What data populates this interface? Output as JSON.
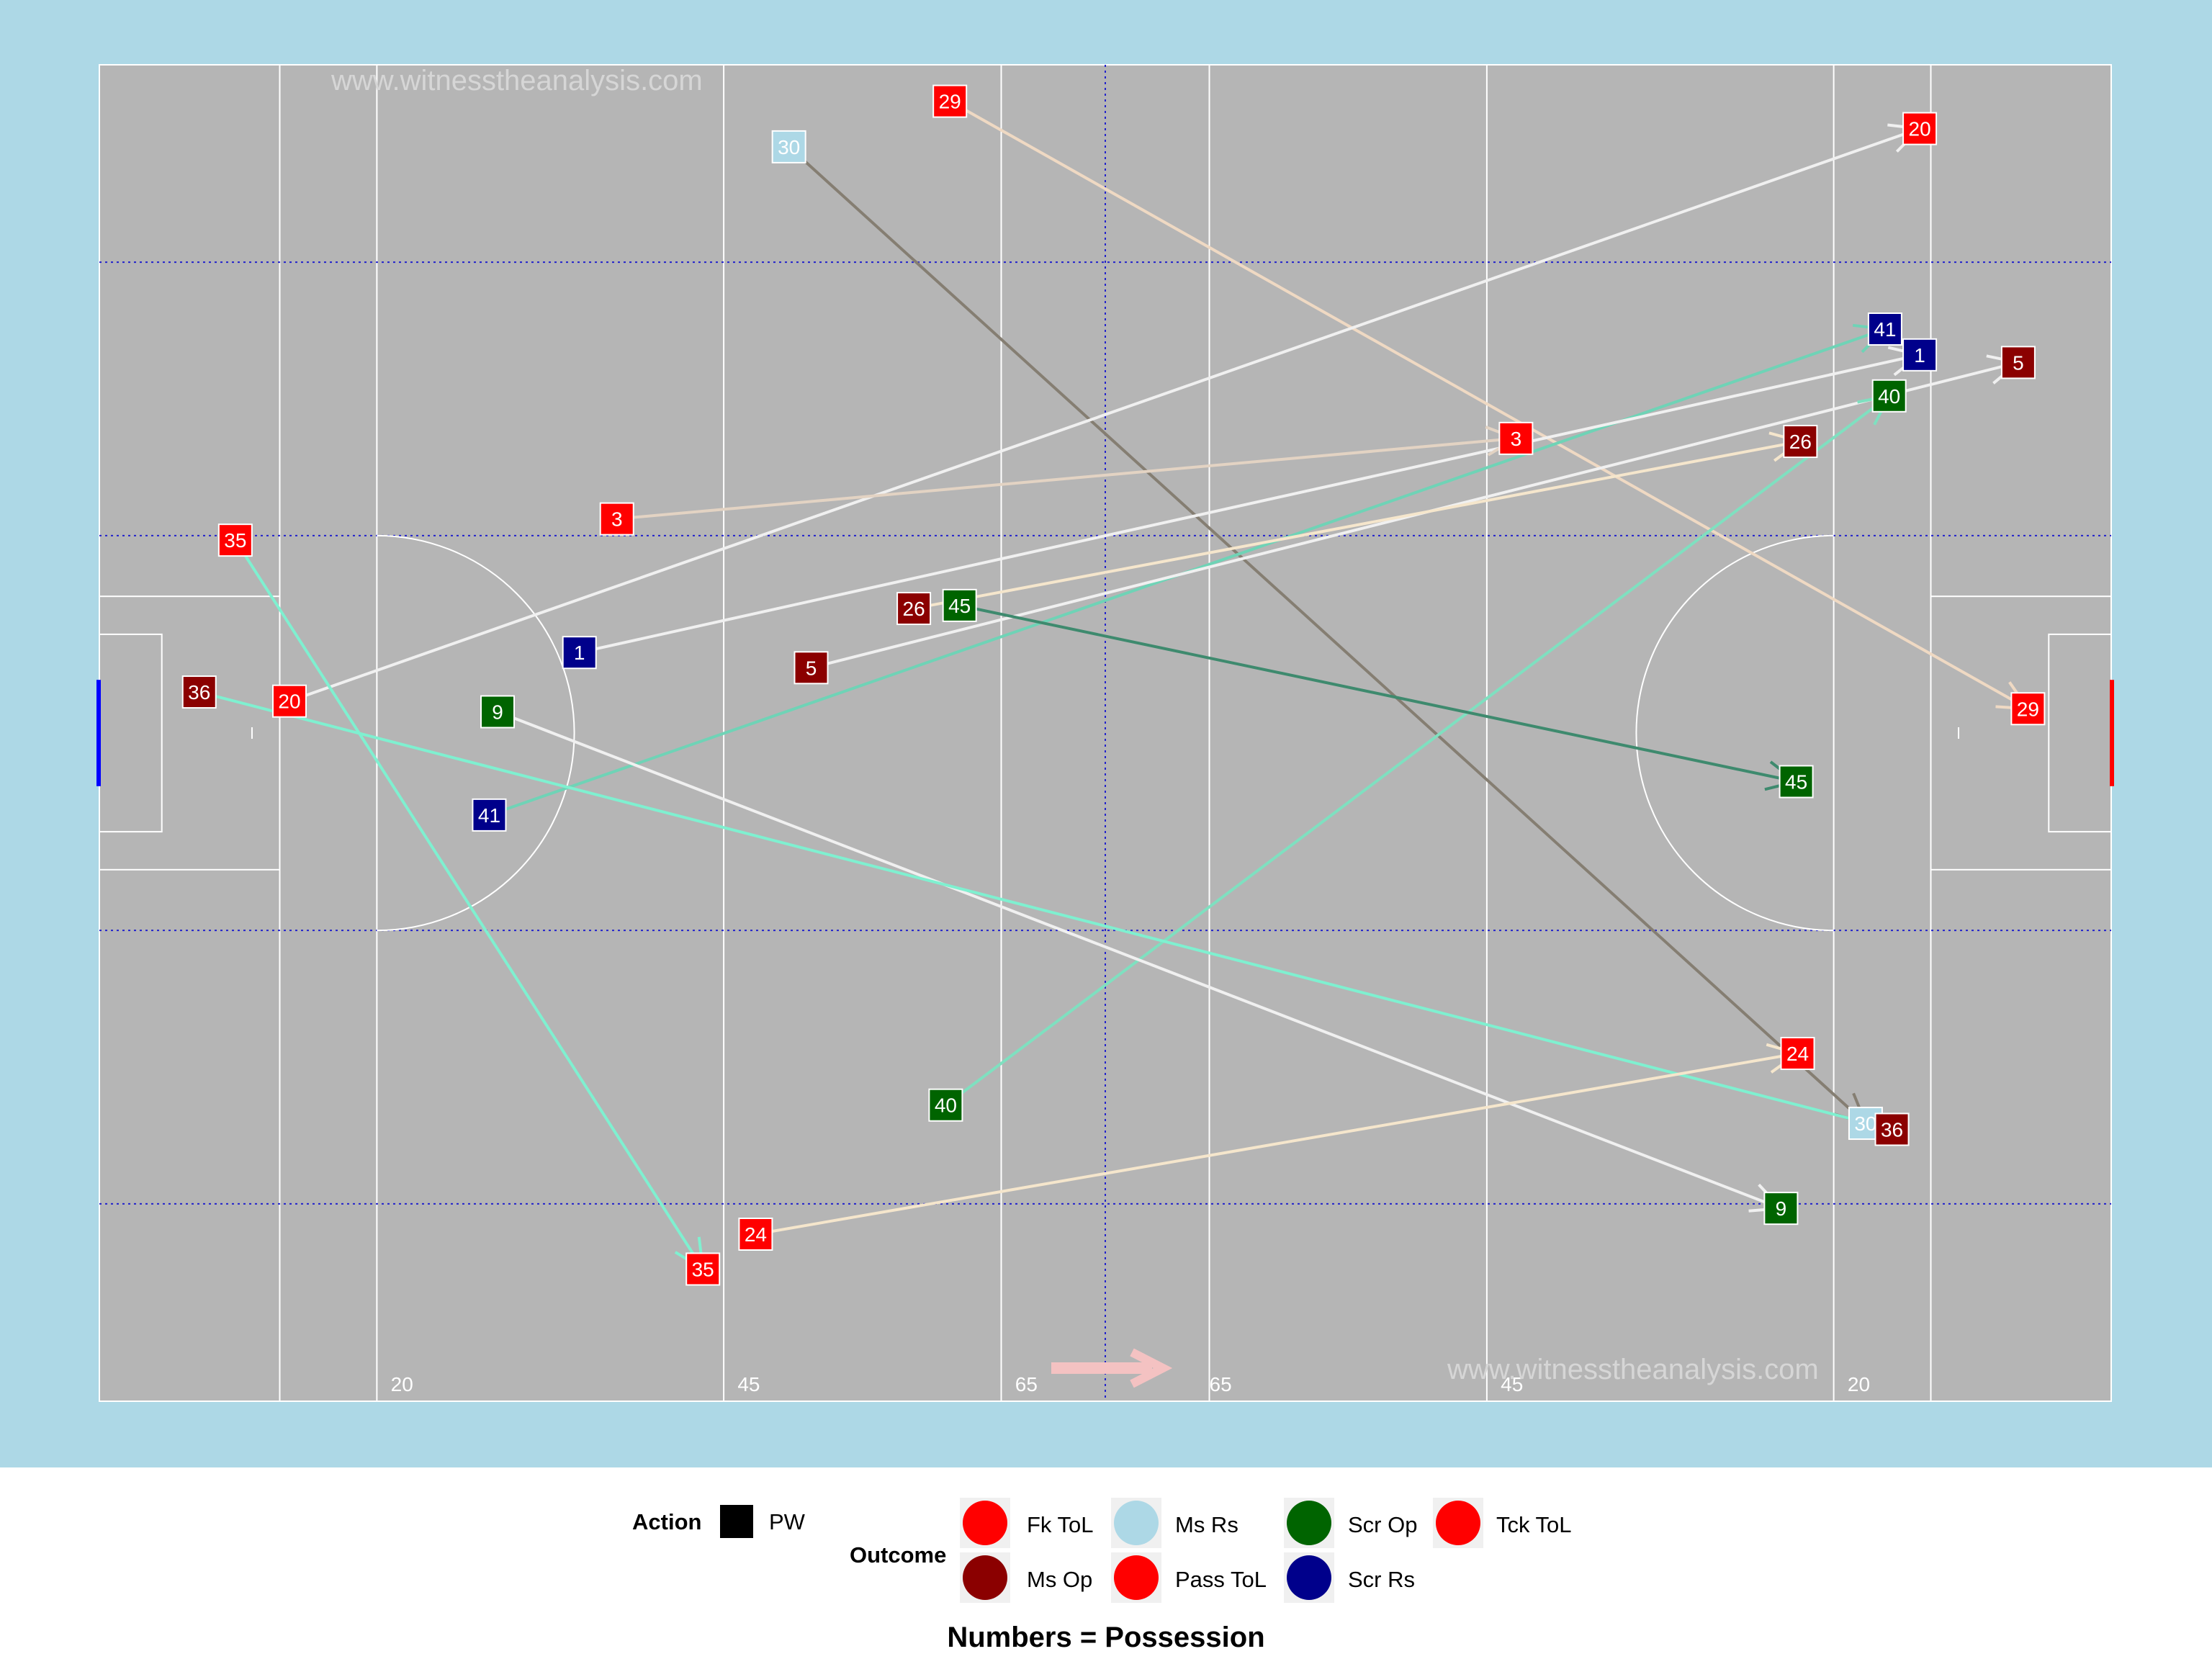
{
  "watermark": "www.witnesstheanalysis.com",
  "caption": "Numbers = Possession",
  "distance_labels": [
    "20",
    "45",
    "65",
    "65",
    "45",
    "20"
  ],
  "legend": {
    "action_title": "Action",
    "action_item": "PW",
    "outcome_title": "Outcome",
    "outcomes": [
      {
        "label": "Fk ToL",
        "color": "#ff0000"
      },
      {
        "label": "Ms Op",
        "color": "#8b0000"
      },
      {
        "label": "Ms Rs",
        "color": "#add8e6"
      },
      {
        "label": "Pass ToL",
        "color": "#ff0000"
      },
      {
        "label": "Scr Op",
        "color": "#006400"
      },
      {
        "label": "Scr Rs",
        "color": "#00008b"
      },
      {
        "label": "Tck ToL",
        "color": "#ff0000"
      }
    ]
  },
  "chart_data": {
    "type": "scatter",
    "description_scale": "pitch coordinates: x 0-145 (left goal to right goal), y 0-88",
    "arrows": [
      {
        "id": "30",
        "from": [
          49.7,
          82.6
        ],
        "to": [
          127.3,
          18.3
        ],
        "outcome": "Ms Rs",
        "color": "#857e72",
        "fill": "#add8e6",
        "text": "#ffffff"
      },
      {
        "id": "29",
        "from": [
          61.3,
          85.6
        ],
        "to": [
          139.0,
          45.6
        ],
        "outcome": "Fk ToL",
        "color": "#efd9c3",
        "fill": "#ff0000",
        "text": "#ffffff"
      },
      {
        "id": "20",
        "from": [
          13.7,
          46.1
        ],
        "to": [
          131.2,
          83.8
        ],
        "outcome": "Pass ToL",
        "color": "#f0f0f0",
        "fill": "#ff0000",
        "text": "#ffffff"
      },
      {
        "id": "41",
        "from": [
          28.1,
          38.6
        ],
        "to": [
          128.7,
          70.6
        ],
        "outcome": "Scr Rs",
        "color": "#6fd3b6",
        "fill": "#00008b",
        "text": "#ffffff"
      },
      {
        "id": "1",
        "from": [
          34.6,
          49.3
        ],
        "to": [
          131.2,
          68.9
        ],
        "outcome": "Scr Rs",
        "color": "#f0f0f0",
        "fill": "#00008b",
        "text": "#ffffff"
      },
      {
        "id": "5",
        "from": [
          51.3,
          48.3
        ],
        "to": [
          138.3,
          68.4
        ],
        "outcome": "Ms Op",
        "color": "#f0f0f0",
        "fill": "#8b0000",
        "text": "#ffffff"
      },
      {
        "id": "3",
        "from": [
          37.3,
          58.1
        ],
        "to": [
          102.1,
          63.4
        ],
        "outcome": "Tck ToL",
        "color": "#e3d3c3",
        "fill": "#ff0000",
        "text": "#ffffff"
      },
      {
        "id": "26",
        "from": [
          58.7,
          52.2
        ],
        "to": [
          122.6,
          63.2
        ],
        "outcome": "Ms Op",
        "color": "#f5e6cc",
        "fill": "#8b0000",
        "text": "#ffffff"
      },
      {
        "id": "40",
        "from": [
          61.0,
          19.5
        ],
        "to": [
          129.0,
          66.2
        ],
        "outcome": "Scr Op",
        "color": "#7fe0c0",
        "fill": "#006400",
        "text": "#ffffff"
      },
      {
        "id": "45",
        "from": [
          62.0,
          52.4
        ],
        "to": [
          122.3,
          40.8
        ],
        "outcome": "Scr Op",
        "color": "#3e8a6e",
        "fill": "#006400",
        "text": "#ffffff"
      },
      {
        "id": "9",
        "from": [
          28.7,
          45.4
        ],
        "to": [
          121.2,
          12.7
        ],
        "outcome": "Scr Op",
        "color": "#f0f0f0",
        "fill": "#006400",
        "text": "#ffffff"
      },
      {
        "id": "35",
        "from": [
          9.8,
          56.7
        ],
        "to": [
          43.5,
          8.7
        ],
        "outcome": "Tck ToL",
        "color": "#7ff0d0",
        "fill": "#ff0000",
        "text": "#ffffff"
      },
      {
        "id": "36",
        "from": [
          7.2,
          46.7
        ],
        "to": [
          129.2,
          17.9
        ],
        "outcome": "Ms Op",
        "color": "#7ff0d0",
        "fill": "#8b0000",
        "text": "#ffffff"
      },
      {
        "id": "24",
        "from": [
          47.3,
          11.0
        ],
        "to": [
          122.4,
          22.9
        ],
        "outcome": "Fk ToL",
        "color": "#f5e6cc",
        "fill": "#ff0000",
        "text": "#ffffff"
      }
    ]
  }
}
